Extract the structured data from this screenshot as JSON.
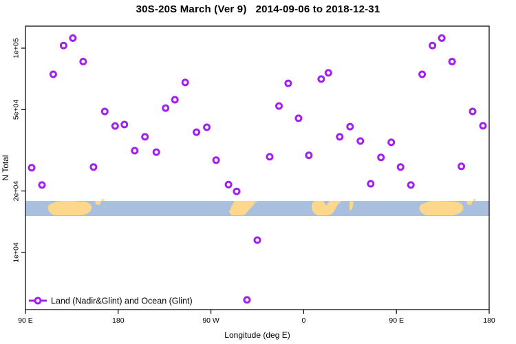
{
  "title": "30S-20S March (Ver 9)   2014-09-06 to 2018-12-31",
  "colors": {
    "marker": "#A020F0",
    "ocean": "#a8bfdd",
    "land": "#fcd78c",
    "border": "#2f2f2f",
    "tick": "#000000"
  },
  "y_axis": {
    "title": "N Total",
    "scale": "log",
    "ticks": [
      {
        "value": 100000,
        "label": "1e+05"
      },
      {
        "value": 50000,
        "label": "5e+04"
      },
      {
        "value": 20000,
        "label": "2e+04"
      },
      {
        "value": 10000,
        "label": "1e+04"
      }
    ]
  },
  "x_axis": {
    "title": "Longitude (deg E)",
    "note": "axis spans 450 deg of longitude, wrapping 90E>180>90W>0>90E>180",
    "ticks": [
      {
        "value": 90,
        "label": "90 E"
      },
      {
        "value": 180,
        "label": "180"
      },
      {
        "value": 270,
        "label": "90 W"
      },
      {
        "value": 360,
        "label": "0"
      },
      {
        "value": 450,
        "label": "90 E"
      },
      {
        "value": 540,
        "label": "180"
      }
    ]
  },
  "legend": {
    "label": "Land (Nadir&Glint) and Ocean (Glint)"
  },
  "chart_data": {
    "type": "scatter",
    "title": "30S-20S March (Ver 9)   2014-09-06 to 2018-12-31",
    "xlabel": "Longitude (deg E)",
    "ylabel": "N Total",
    "yscale": "log",
    "ylim": [
      5000,
      130000
    ],
    "xlim": [
      90,
      540
    ],
    "x_wraps": "longitudes above 360 are 360 + deg E (second copy of 90E-180 band)",
    "points": [
      [
        96,
        26000
      ],
      [
        106,
        21400
      ],
      [
        117,
        74500
      ],
      [
        127,
        103000
      ],
      [
        136,
        112000
      ],
      [
        146,
        86000
      ],
      [
        156,
        26200
      ],
      [
        167,
        49000
      ],
      [
        177,
        41600
      ],
      [
        186,
        42300
      ],
      [
        196,
        31500
      ],
      [
        206,
        36800
      ],
      [
        217,
        31000
      ],
      [
        226,
        50900
      ],
      [
        235,
        55900
      ],
      [
        245,
        67900
      ],
      [
        256,
        38800
      ],
      [
        266,
        41000
      ],
      [
        275,
        28300
      ],
      [
        287,
        21500
      ],
      [
        295,
        19900
      ],
      [
        305,
        5860
      ],
      [
        315,
        11500
      ],
      [
        327,
        29400
      ],
      [
        336,
        52100
      ],
      [
        345,
        67300
      ],
      [
        355,
        45400
      ],
      [
        365,
        29900
      ],
      [
        377,
        70600
      ],
      [
        384,
        75700
      ],
      [
        395,
        36800
      ],
      [
        405,
        41300
      ],
      [
        415,
        35100
      ],
      [
        425,
        21700
      ],
      [
        435,
        29200
      ],
      [
        445,
        34600
      ],
      [
        454,
        26200
      ],
      [
        464,
        21400
      ],
      [
        475,
        74500
      ],
      [
        485,
        103000
      ],
      [
        494,
        112000
      ],
      [
        504,
        86000
      ],
      [
        513,
        26400
      ],
      [
        524,
        49000
      ],
      [
        534,
        41700
      ]
    ],
    "map_strip": {
      "description": "30S-20S latitude world-map band drawn across plot (ocean blue, land tan)",
      "N_range_of_band": [
        15100,
        17900
      ],
      "land_lon_ranges_degE": [
        [
          112,
          155
        ],
        [
          157,
          167
        ],
        [
          287,
          313
        ],
        [
          367,
          397
        ],
        [
          404,
          408
        ],
        [
          472,
          515
        ],
        [
          517,
          527
        ]
      ]
    }
  }
}
